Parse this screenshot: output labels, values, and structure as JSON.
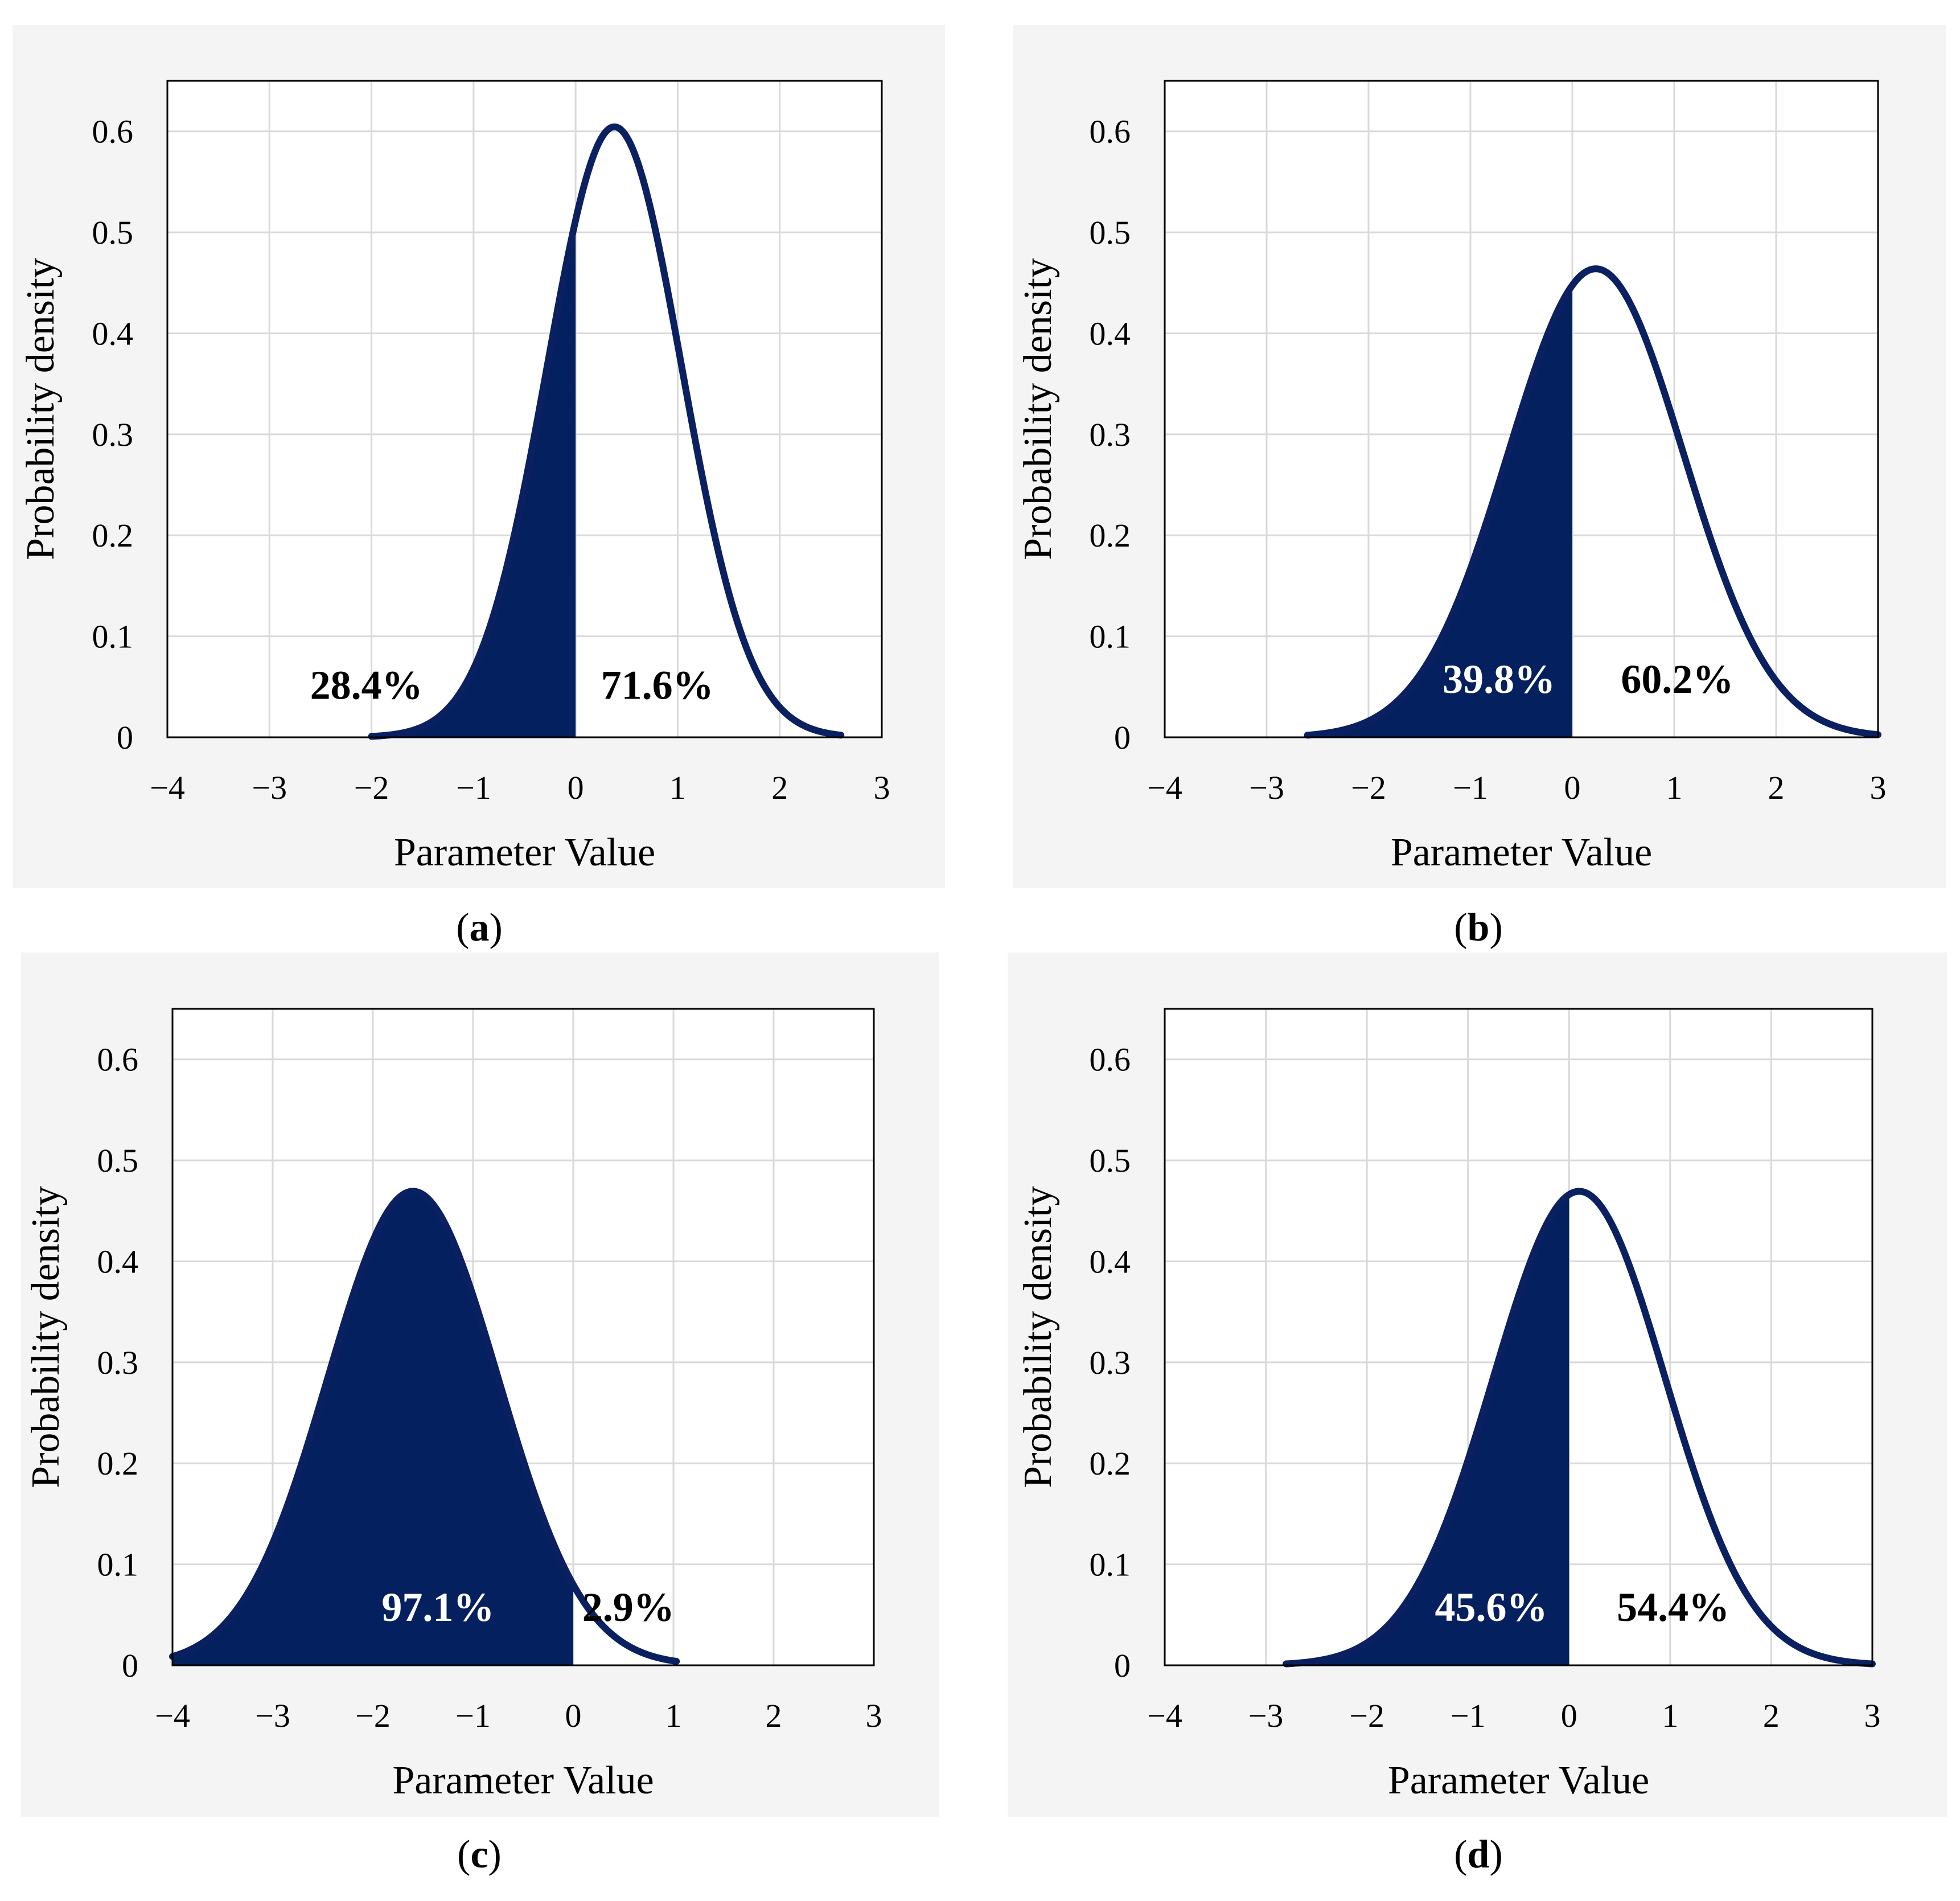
{
  "colors": {
    "curve": "#0b2060",
    "fill": "#05205e",
    "panel_bg": "#f4f4f4",
    "grid": "#d9d9d9"
  },
  "chart_data": [
    {
      "id": "a",
      "type": "area",
      "caption_letter": "a",
      "xlabel": "Parameter Value",
      "ylabel": "Probability density",
      "xlim": [
        -4,
        3
      ],
      "ylim": [
        0,
        0.65
      ],
      "xticks": [
        -4,
        -3,
        -2,
        -1,
        0,
        1,
        2,
        3
      ],
      "xtick_labels": [
        "−4",
        "−3",
        "−2",
        "−1",
        "0",
        "1",
        "2",
        "3"
      ],
      "yticks": [
        0,
        0.1,
        0.2,
        0.3,
        0.4,
        0.5,
        0.6
      ],
      "ytick_labels": [
        "0",
        "0.1",
        "0.2",
        "0.3",
        "0.4",
        "0.5",
        "0.6"
      ],
      "distribution": {
        "kind": "normal",
        "mean": 0.38,
        "sd": 0.66,
        "x_start": -2.0,
        "x_end": 2.6,
        "shade_below": 0
      },
      "annotations": [
        {
          "text": "28.4%",
          "x": -2.05,
          "y": 0.038,
          "color": "#000000"
        },
        {
          "text": "71.6%",
          "x": 0.8,
          "y": 0.038,
          "color": "#000000"
        }
      ]
    },
    {
      "id": "b",
      "type": "area",
      "caption_letter": "b",
      "xlabel": "Parameter Value",
      "ylabel": "Probability density",
      "xlim": [
        -4,
        3
      ],
      "ylim": [
        0,
        0.65
      ],
      "xticks": [
        -4,
        -3,
        -2,
        -1,
        0,
        1,
        2,
        3
      ],
      "xtick_labels": [
        "−4",
        "−3",
        "−2",
        "−1",
        "0",
        "1",
        "2",
        "3"
      ],
      "yticks": [
        0,
        0.1,
        0.2,
        0.3,
        0.4,
        0.5,
        0.6
      ],
      "ytick_labels": [
        "0",
        "0.1",
        "0.2",
        "0.3",
        "0.4",
        "0.5",
        "0.6"
      ],
      "distribution": {
        "kind": "normal",
        "mean": 0.23,
        "sd": 0.86,
        "x_start": -2.6,
        "x_end": 3.0,
        "shade_below": 0
      },
      "annotations": [
        {
          "text": "39.8%",
          "x": -0.72,
          "y": 0.044,
          "color": "#ffffff"
        },
        {
          "text": "60.2%",
          "x": 1.03,
          "y": 0.044,
          "color": "#000000"
        }
      ]
    },
    {
      "id": "c",
      "type": "area",
      "caption_letter": "c",
      "xlabel": "Parameter Value",
      "ylabel": "Probability density",
      "xlim": [
        -4,
        3
      ],
      "ylim": [
        0,
        0.65
      ],
      "xticks": [
        -4,
        -3,
        -2,
        -1,
        0,
        1,
        2,
        3
      ],
      "xtick_labels": [
        "−4",
        "−3",
        "−2",
        "−1",
        "0",
        "1",
        "2",
        "3"
      ],
      "yticks": [
        0,
        0.1,
        0.2,
        0.3,
        0.4,
        0.5,
        0.6
      ],
      "ytick_labels": [
        "0",
        "0.1",
        "0.2",
        "0.3",
        "0.4",
        "0.5",
        "0.6"
      ],
      "distribution": {
        "kind": "normal",
        "mean": -1.6,
        "sd": 0.85,
        "x_start": -4.0,
        "x_end": 1.03,
        "shade_below": 0
      },
      "annotations": [
        {
          "text": "97.1%",
          "x": -1.35,
          "y": 0.044,
          "color": "#ffffff"
        },
        {
          "text": "2.9%",
          "x": 0.55,
          "y": 0.044,
          "color": "#000000"
        }
      ]
    },
    {
      "id": "d",
      "type": "area",
      "caption_letter": "d",
      "xlabel": "Parameter Value",
      "ylabel": "Probability density",
      "xlim": [
        -4,
        3
      ],
      "ylim": [
        0,
        0.65
      ],
      "xticks": [
        -4,
        -3,
        -2,
        -1,
        0,
        1,
        2,
        3
      ],
      "xtick_labels": [
        "−4",
        "−3",
        "−2",
        "−1",
        "0",
        "1",
        "2",
        "3"
      ],
      "yticks": [
        0,
        0.1,
        0.2,
        0.3,
        0.4,
        0.5,
        0.6
      ],
      "ytick_labels": [
        "0",
        "0.1",
        "0.2",
        "0.3",
        "0.4",
        "0.5",
        "0.6"
      ],
      "distribution": {
        "kind": "normal",
        "mean": 0.1,
        "sd": 0.85,
        "x_start": -2.8,
        "x_end": 3.0,
        "shade_below": 0
      },
      "annotations": [
        {
          "text": "45.6%",
          "x": -0.77,
          "y": 0.044,
          "color": "#ffffff"
        },
        {
          "text": "54.4%",
          "x": 1.03,
          "y": 0.044,
          "color": "#000000"
        }
      ]
    }
  ]
}
